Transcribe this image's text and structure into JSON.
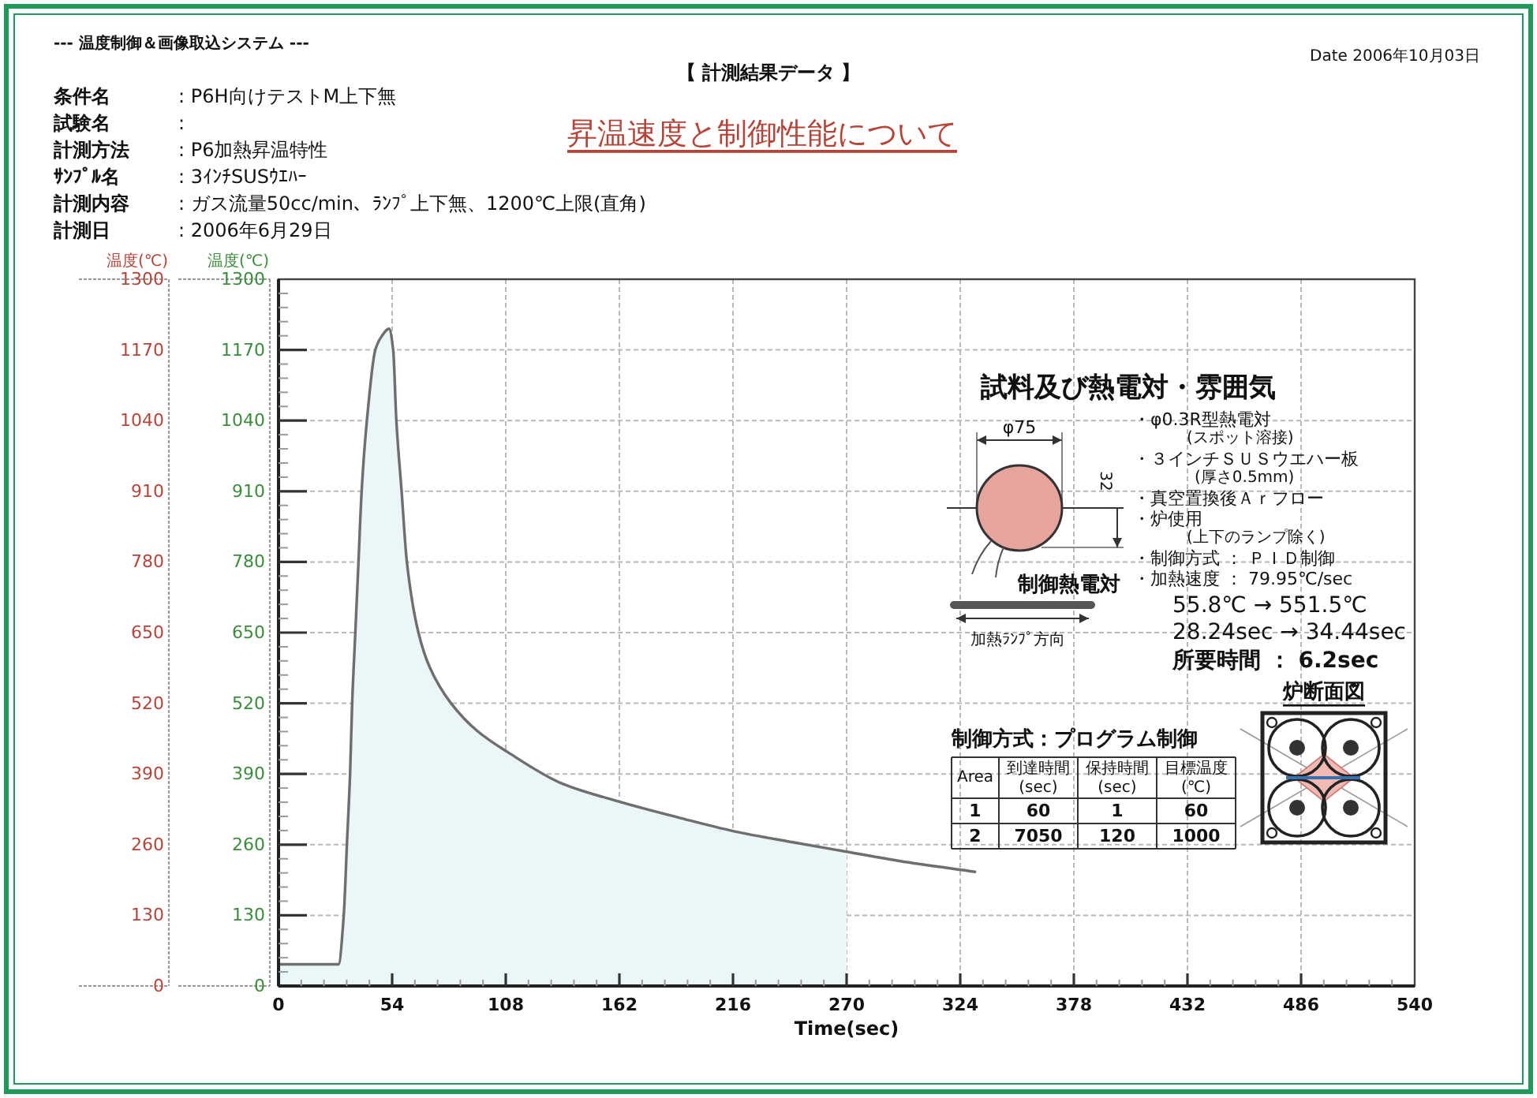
{
  "chart_data": {
    "type": "line",
    "title": "【 計測結果データ 】",
    "subtitle": "昇温速度と制御性能について",
    "xlabel": "Time(sec)",
    "ylabel": "温度(℃)",
    "y2label": "温度(℃)",
    "xlim": [
      0,
      540
    ],
    "xticks": [
      0,
      54,
      108,
      162,
      216,
      270,
      324,
      378,
      432,
      486,
      540
    ],
    "ylim": [
      0,
      1300
    ],
    "yticks": [
      0,
      130,
      260,
      390,
      520,
      650,
      780,
      910,
      1040,
      1170,
      1300
    ],
    "y2lim": [
      0,
      1300
    ],
    "y2ticks": [
      0,
      130,
      260,
      390,
      520,
      650,
      780,
      910,
      1040,
      1170,
      1300
    ],
    "grid": true,
    "series": [
      {
        "type": "area",
        "color": "#eaf6f8",
        "x": [
          0,
          28.5,
          31,
          32.5,
          34,
          35,
          36.5,
          38,
          39.5,
          42,
          46,
          49,
          52.5,
          54.5,
          56,
          58.5,
          61,
          66.5,
          72,
          82,
          94.5,
          109,
          135,
          162,
          190,
          216,
          245,
          270
        ],
        "values": [
          40,
          40,
          130,
          260,
          390,
          520,
          650,
          780,
          910,
          1040,
          1170,
          1195,
          1209,
          1170,
          1040,
          910,
          780,
          650,
          585,
          520,
          469,
          430,
          372,
          339,
          310,
          285,
          264,
          247
        ]
      },
      {
        "type": "line",
        "color": "#6e6e6e",
        "x": [
          0,
          28.5,
          31,
          32.5,
          34,
          35,
          36.5,
          38,
          39.5,
          42,
          46,
          49,
          52.5,
          54.5,
          56,
          58.5,
          61,
          66.5,
          72,
          82,
          94.5,
          109,
          135,
          162,
          190,
          216,
          245,
          270,
          295,
          331
        ],
        "values": [
          40,
          40,
          130,
          260,
          390,
          520,
          650,
          780,
          910,
          1040,
          1170,
          1195,
          1209,
          1170,
          1040,
          910,
          780,
          650,
          585,
          520,
          469,
          430,
          372,
          339,
          310,
          285,
          264,
          247,
          230,
          210
        ]
      }
    ],
    "annotations": [
      "--- 温度制御＆画像取込システム ---",
      "Date 2006年10月03日",
      "条件名",
      ":  P6H向けテストM上下無",
      "試験名",
      ":",
      "計測方法",
      ":  P6加熱昇温特性",
      "ｻﾝﾌﾟﾙ名",
      ":  3ｲﾝﾁSUSｳｴﾊｰ",
      "計測内容",
      ":  ガス流量50cc/min、ﾗﾝﾌﾟ上下無、1200℃上限(直角)",
      "計測日",
      ":  2006年6月29日",
      "試料及び熱電対・雰囲気",
      "φ75",
      "32",
      "制御熱電対",
      "加熱ﾗﾝﾌﾟ方向",
      "・φ0.3R型熱電対",
      "(スポット溶接)",
      "・３インチＳＵＳウエハー板",
      "(厚さ0.5mm)",
      "・真空置換後Ａｒフロー",
      "・炉使用",
      "(上下のランプ除く)",
      "・制御方式 ： ＰＩＤ制御",
      "・加熱速度 ： 79.95℃/sec",
      "55.8℃ → 551.5℃",
      "28.24sec → 34.44sec",
      "所要時間 ： 6.2sec",
      "炉断面図",
      "制御方式：プログラム制御",
      "Area",
      "到達時間(sec)",
      "保持時間(sec)",
      "目標温度(℃)",
      "1",
      "60",
      "1",
      "60",
      "2",
      "7050",
      "120",
      "1000"
    ]
  }
}
